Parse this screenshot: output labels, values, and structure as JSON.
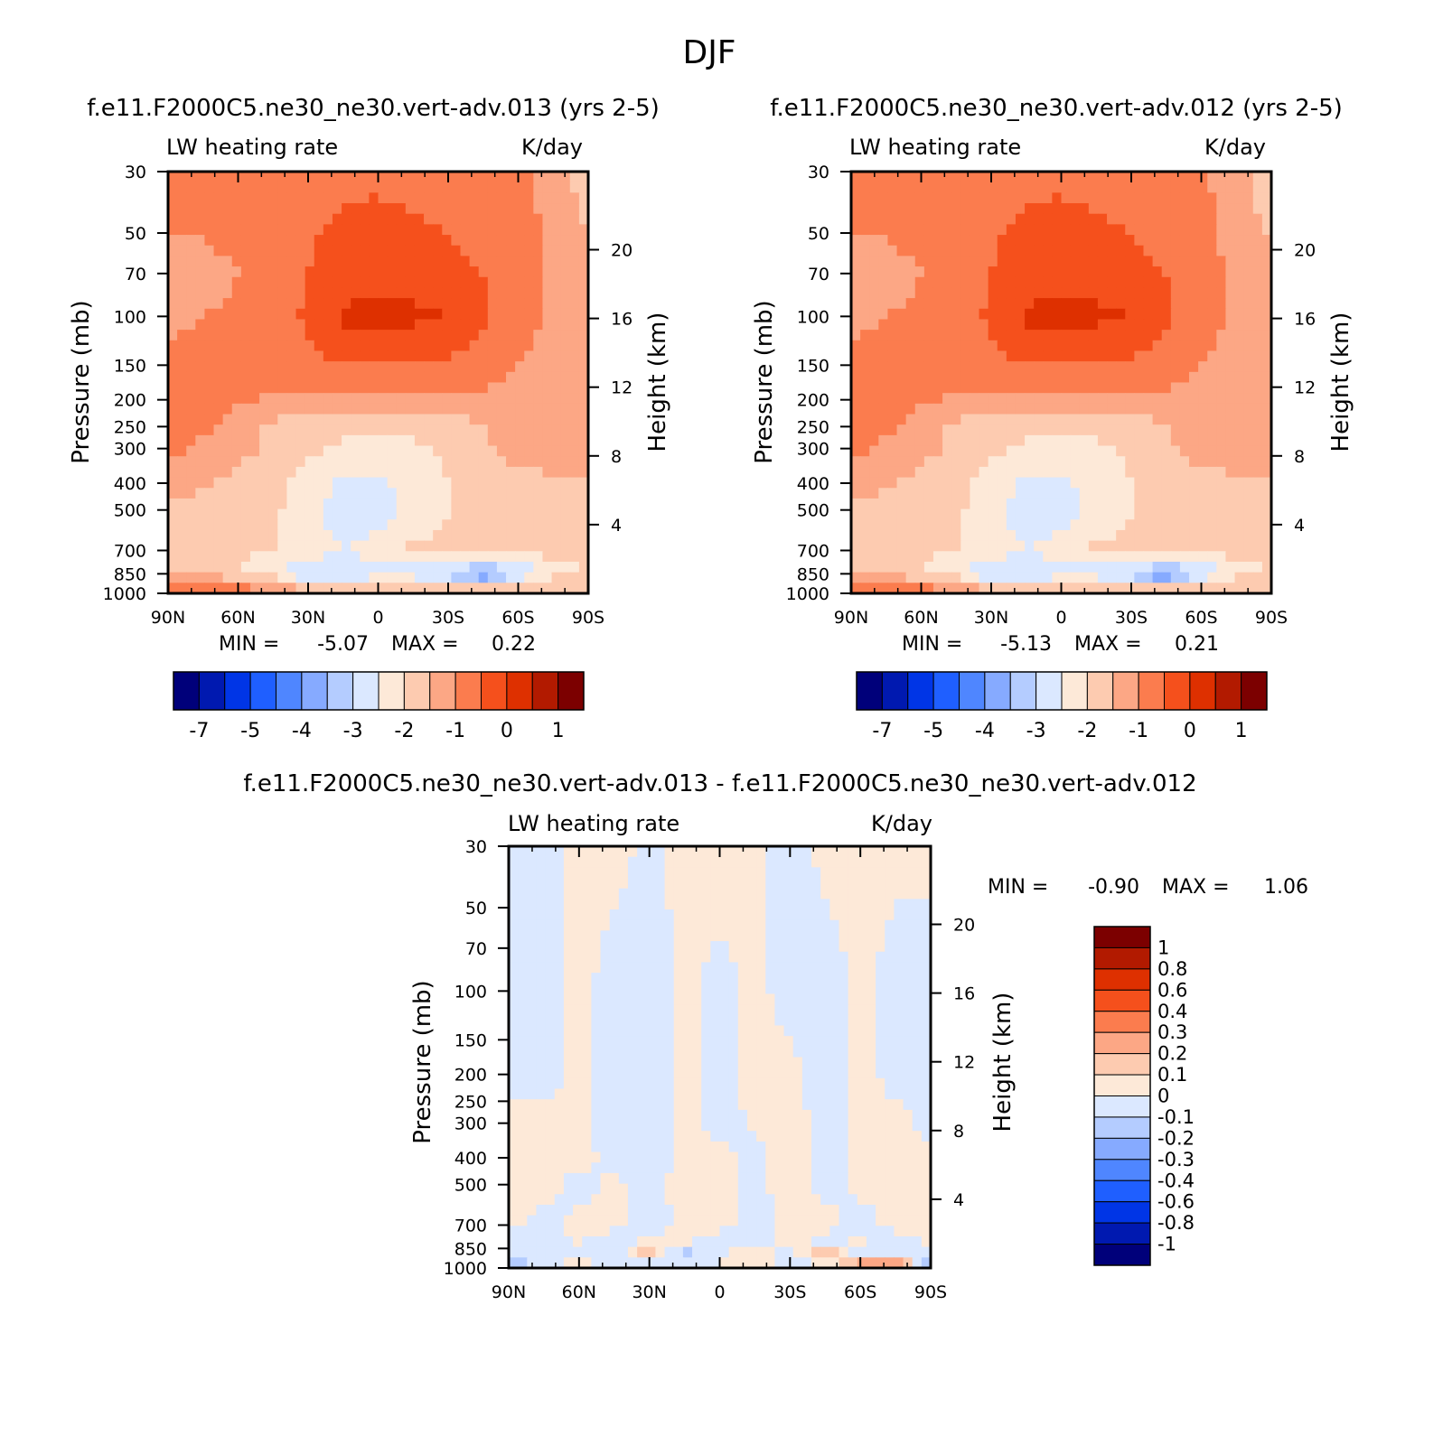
{
  "figure": {
    "title": "DJF"
  },
  "colors": {
    "frame": "#000000",
    "left_scale": [
      "#00007a",
      "#0019b0",
      "#0035e6",
      "#1f5fff",
      "#4f86ff",
      "#86aaff",
      "#b4ccff",
      "#dbe8ff",
      "#fde9d8",
      "#fdcbb0",
      "#fca785",
      "#fb7c4e",
      "#f5501c",
      "#de3000",
      "#b21a00",
      "#7c0000"
    ],
    "diff_scale": [
      "#00007a",
      "#0019b0",
      "#0035e6",
      "#1f5fff",
      "#4f86ff",
      "#86aaff",
      "#b4ccff",
      "#dbe8ff",
      "#fde9d8",
      "#fdcbb0",
      "#fca785",
      "#fb7c4e",
      "#f5501c",
      "#de3000",
      "#b21a00",
      "#7c0000"
    ]
  },
  "chart_data": [
    {
      "type": "heatmap",
      "id": "panel_013",
      "title": "f.e11.F2000C5.ne30_ne30.vert-adv.013 (yrs 2-5)",
      "left_string": "LW heating rate",
      "right_string": "K/day",
      "ylabel": "Pressure (mb)",
      "y2label": "Height (km)",
      "x_ticklabels": [
        "90N",
        "60N",
        "30N",
        "0",
        "30S",
        "60S",
        "90S"
      ],
      "y_ticklabels": [
        "30",
        "50",
        "70",
        "100",
        "150",
        "200",
        "250",
        "300",
        "400",
        "500",
        "700",
        "850",
        "1000"
      ],
      "y2_ticklabels": [
        "20",
        "16",
        "12",
        "8",
        "4"
      ],
      "xlim": [
        90,
        -90
      ],
      "ylim": [
        1000,
        30
      ],
      "y_scale": "log",
      "min_label": "MIN =",
      "min_value": "-5.07",
      "max_label": "MAX =",
      "max_value": "0.22",
      "colorbar_labels": [
        "-7",
        "-5",
        "-4",
        "-3",
        "-2",
        "-1",
        "0",
        "1"
      ],
      "field": [
        {
          "p": 30,
          "v": [
            -0.6,
            -0.6,
            -0.6,
            -0.6,
            -0.6,
            -0.6,
            -0.6,
            -0.7,
            -0.7,
            -0.8,
            -0.8,
            -1.2,
            -1.8
          ]
        },
        {
          "p": 70,
          "v": [
            -1.2,
            -1.2,
            -1.0,
            -0.8,
            -0.5,
            -0.3,
            -0.2,
            -0.2,
            -0.4,
            -0.5,
            -0.8,
            -1.1,
            -1.3
          ]
        },
        {
          "p": 100,
          "v": [
            -1.1,
            -1.0,
            -0.9,
            -0.8,
            -0.4,
            0.1,
            0.2,
            0.1,
            0.0,
            -0.4,
            -0.8,
            -1.1,
            -1.2
          ]
        },
        {
          "p": 150,
          "v": [
            -0.9,
            -0.8,
            -0.7,
            -0.8,
            -0.6,
            -0.5,
            -0.5,
            -0.5,
            -0.6,
            -0.8,
            -1.0,
            -1.2,
            -1.3
          ]
        },
        {
          "p": 200,
          "v": [
            -0.6,
            -0.7,
            -0.9,
            -1.1,
            -1.2,
            -1.2,
            -1.2,
            -1.2,
            -1.2,
            -1.1,
            -1.1,
            -1.2,
            -1.2
          ]
        },
        {
          "p": 250,
          "v": [
            -0.6,
            -0.9,
            -1.3,
            -1.6,
            -1.8,
            -1.9,
            -1.9,
            -1.9,
            -1.8,
            -1.5,
            -1.2,
            -1.2,
            -1.2
          ]
        },
        {
          "p": 300,
          "v": [
            -0.9,
            -1.1,
            -1.3,
            -1.6,
            -1.9,
            -2.1,
            -2.1,
            -2.1,
            -1.9,
            -1.6,
            -1.3,
            -1.2,
            -1.2
          ]
        },
        {
          "p": 400,
          "v": [
            -1.2,
            -1.4,
            -1.7,
            -1.9,
            -2.2,
            -2.6,
            -2.6,
            -2.3,
            -2.0,
            -1.8,
            -1.7,
            -1.6,
            -1.5
          ]
        },
        {
          "p": 500,
          "v": [
            -1.6,
            -1.8,
            -1.9,
            -1.9,
            -2.3,
            -2.8,
            -2.7,
            -2.3,
            -2.0,
            -1.9,
            -1.9,
            -1.8,
            -1.6
          ]
        },
        {
          "p": 700,
          "v": [
            -1.7,
            -1.9,
            -1.9,
            -2.0,
            -2.3,
            -2.5,
            -2.3,
            -1.9,
            -1.9,
            -1.9,
            -1.9,
            -1.8,
            -1.6
          ]
        },
        {
          "p": 800,
          "v": [
            -1.7,
            -1.8,
            -2.0,
            -2.4,
            -2.6,
            -2.7,
            -2.6,
            -2.5,
            -2.8,
            -3.0,
            -2.8,
            -2.2,
            -1.9
          ]
        },
        {
          "p": 850,
          "v": [
            -1.4,
            -1.5,
            -1.8,
            -2.3,
            -3.2,
            -2.8,
            -2.4,
            -2.6,
            -3.3,
            -4.8,
            -3.1,
            -2.2,
            -1.7
          ]
        },
        {
          "p": 900,
          "v": [
            -1.1,
            -1.2,
            -1.4,
            -1.7,
            -2.3,
            -2.6,
            -2.5,
            -2.4,
            -2.6,
            -2.7,
            -2.3,
            -1.8,
            -1.5
          ]
        },
        {
          "p": 1000,
          "v": [
            -0.8,
            -0.7,
            -0.6,
            -0.8,
            -1.3,
            -1.5,
            -1.6,
            -1.5,
            -1.5,
            -1.4,
            -1.3,
            -1.4,
            -1.6
          ]
        }
      ]
    },
    {
      "type": "heatmap",
      "id": "panel_012",
      "title": "f.e11.F2000C5.ne30_ne30.vert-adv.012 (yrs 2-5)",
      "left_string": "LW heating rate",
      "right_string": "K/day",
      "ylabel": "Pressure (mb)",
      "y2label": "Height (km)",
      "x_ticklabels": [
        "90N",
        "60N",
        "30N",
        "0",
        "30S",
        "60S",
        "90S"
      ],
      "y_ticklabels": [
        "30",
        "50",
        "70",
        "100",
        "150",
        "200",
        "250",
        "300",
        "400",
        "500",
        "700",
        "850",
        "1000"
      ],
      "y2_ticklabels": [
        "20",
        "16",
        "12",
        "8",
        "4"
      ],
      "xlim": [
        90,
        -90
      ],
      "ylim": [
        1000,
        30
      ],
      "y_scale": "log",
      "min_label": "MIN =",
      "min_value": "-5.13",
      "max_label": "MAX =",
      "max_value": "0.21",
      "colorbar_labels": [
        "-7",
        "-5",
        "-4",
        "-3",
        "-2",
        "-1",
        "0",
        "1"
      ],
      "field": [
        {
          "p": 30,
          "v": [
            -0.6,
            -0.6,
            -0.6,
            -0.6,
            -0.6,
            -0.6,
            -0.6,
            -0.7,
            -0.7,
            -0.8,
            -0.9,
            -1.3,
            -1.9
          ]
        },
        {
          "p": 70,
          "v": [
            -1.2,
            -1.2,
            -1.0,
            -0.8,
            -0.5,
            -0.3,
            -0.2,
            -0.2,
            -0.4,
            -0.5,
            -0.8,
            -1.1,
            -1.3
          ]
        },
        {
          "p": 100,
          "v": [
            -1.1,
            -1.0,
            -0.9,
            -0.8,
            -0.4,
            0.1,
            0.2,
            0.1,
            0.0,
            -0.4,
            -0.8,
            -1.1,
            -1.2
          ]
        },
        {
          "p": 150,
          "v": [
            -0.9,
            -0.8,
            -0.7,
            -0.8,
            -0.6,
            -0.5,
            -0.5,
            -0.5,
            -0.6,
            -0.8,
            -1.0,
            -1.2,
            -1.3
          ]
        },
        {
          "p": 200,
          "v": [
            -0.6,
            -0.7,
            -0.9,
            -1.1,
            -1.2,
            -1.2,
            -1.2,
            -1.2,
            -1.2,
            -1.1,
            -1.1,
            -1.2,
            -1.2
          ]
        },
        {
          "p": 250,
          "v": [
            -0.6,
            -0.9,
            -1.3,
            -1.6,
            -1.8,
            -1.9,
            -1.9,
            -1.9,
            -1.8,
            -1.5,
            -1.2,
            -1.2,
            -1.2
          ]
        },
        {
          "p": 300,
          "v": [
            -0.9,
            -1.1,
            -1.3,
            -1.6,
            -1.9,
            -2.1,
            -2.1,
            -2.1,
            -1.9,
            -1.6,
            -1.3,
            -1.2,
            -1.2
          ]
        },
        {
          "p": 400,
          "v": [
            -1.2,
            -1.4,
            -1.7,
            -1.9,
            -2.2,
            -2.6,
            -2.6,
            -2.3,
            -2.0,
            -1.8,
            -1.7,
            -1.6,
            -1.5
          ]
        },
        {
          "p": 500,
          "v": [
            -1.6,
            -1.8,
            -1.9,
            -1.9,
            -2.3,
            -2.8,
            -2.7,
            -2.3,
            -2.0,
            -1.9,
            -1.9,
            -1.8,
            -1.6
          ]
        },
        {
          "p": 700,
          "v": [
            -1.7,
            -1.9,
            -1.9,
            -2.0,
            -2.3,
            -2.5,
            -2.3,
            -1.9,
            -1.9,
            -1.9,
            -1.9,
            -1.8,
            -1.6
          ]
        },
        {
          "p": 800,
          "v": [
            -1.7,
            -1.8,
            -2.0,
            -2.4,
            -2.6,
            -2.7,
            -2.6,
            -2.5,
            -2.8,
            -3.0,
            -2.8,
            -2.2,
            -1.9
          ]
        },
        {
          "p": 850,
          "v": [
            -1.4,
            -1.5,
            -1.8,
            -2.3,
            -3.1,
            -2.7,
            -2.4,
            -2.6,
            -3.3,
            -4.9,
            -3.1,
            -2.2,
            -1.7
          ]
        },
        {
          "p": 900,
          "v": [
            -1.1,
            -1.2,
            -1.4,
            -1.7,
            -2.3,
            -2.6,
            -2.5,
            -2.4,
            -2.6,
            -2.7,
            -2.3,
            -1.8,
            -1.5
          ]
        },
        {
          "p": 1000,
          "v": [
            -0.8,
            -0.6,
            -0.6,
            -0.8,
            -1.3,
            -1.5,
            -1.6,
            -1.5,
            -1.5,
            -1.4,
            -1.3,
            -1.4,
            -1.6
          ]
        }
      ]
    },
    {
      "type": "heatmap",
      "id": "panel_diff",
      "title": "f.e11.F2000C5.ne30_ne30.vert-adv.013 - f.e11.F2000C5.ne30_ne30.vert-adv.012",
      "left_string": "LW heating rate",
      "right_string": "K/day",
      "ylabel": "Pressure (mb)",
      "y2label": "Height (km)",
      "x_ticklabels": [
        "90N",
        "60N",
        "30N",
        "0",
        "30S",
        "60S",
        "90S"
      ],
      "y_ticklabels": [
        "30",
        "50",
        "70",
        "100",
        "150",
        "200",
        "250",
        "300",
        "400",
        "500",
        "700",
        "850",
        "1000"
      ],
      "y2_ticklabels": [
        "20",
        "16",
        "12",
        "8",
        "4"
      ],
      "xlim": [
        90,
        -90
      ],
      "ylim": [
        1000,
        30
      ],
      "y_scale": "log",
      "min_label": "MIN =",
      "min_value": "-0.90",
      "max_label": "MAX =",
      "max_value": "1.06",
      "colorbar_labels": [
        "1",
        "0.8",
        "0.6",
        "0.4",
        "0.3",
        "0.2",
        "0.1",
        "0",
        "-0.1",
        "-0.2",
        "-0.3",
        "-0.4",
        "-0.6",
        "-0.8",
        "-1"
      ],
      "field": [
        {
          "p": 30,
          "v": [
            -0.05,
            -0.04,
            0.02,
            0.03,
            -0.02,
            0.03,
            0.04,
            0.02,
            -0.03,
            0.02,
            0.03,
            0.02,
            0.02
          ]
        },
        {
          "p": 100,
          "v": [
            -0.04,
            -0.05,
            0.03,
            -0.04,
            -0.05,
            0.02,
            -0.03,
            0.03,
            -0.04,
            -0.04,
            0.02,
            -0.03,
            -0.04
          ]
        },
        {
          "p": 200,
          "v": [
            -0.03,
            -0.04,
            0.02,
            -0.05,
            -0.06,
            0.03,
            -0.03,
            0.02,
            0.03,
            -0.04,
            0.03,
            -0.03,
            -0.04
          ]
        },
        {
          "p": 300,
          "v": [
            0.02,
            0.03,
            0.02,
            -0.04,
            -0.05,
            0.03,
            -0.04,
            0.02,
            0.03,
            -0.03,
            0.02,
            0.03,
            -0.03
          ]
        },
        {
          "p": 400,
          "v": [
            0.03,
            0.02,
            0.03,
            -0.03,
            -0.04,
            0.02,
            0.03,
            -0.03,
            0.04,
            -0.03,
            0.02,
            0.03,
            0.02
          ]
        },
        {
          "p": 500,
          "v": [
            0.02,
            0.03,
            -0.03,
            0.02,
            -0.03,
            0.03,
            0.02,
            -0.02,
            0.03,
            -0.03,
            0.02,
            0.03,
            0.02
          ]
        },
        {
          "p": 700,
          "v": [
            0.03,
            -0.04,
            0.02,
            0.03,
            -0.04,
            0.02,
            0.03,
            -0.04,
            0.02,
            0.03,
            -0.03,
            0.02,
            0.03
          ]
        },
        {
          "p": 800,
          "v": [
            -0.04,
            -0.05,
            0.02,
            -0.06,
            0.03,
            0.02,
            -0.04,
            -0.05,
            0.03,
            -0.04,
            0.02,
            -0.03,
            0.02
          ]
        },
        {
          "p": 850,
          "v": [
            -0.06,
            -0.12,
            -0.08,
            -0.09,
            0.25,
            -0.18,
            -0.05,
            0.04,
            -0.06,
            0.3,
            -0.07,
            -0.08,
            0.03
          ]
        },
        {
          "p": 900,
          "v": [
            -0.05,
            -0.06,
            -0.04,
            -0.05,
            0.06,
            -0.07,
            -0.04,
            0.12,
            -0.03,
            0.05,
            -0.05,
            -0.06,
            -0.08
          ]
        },
        {
          "p": 1000,
          "v": [
            -0.22,
            -0.07,
            0.1,
            -0.06,
            -0.04,
            -0.05,
            0.03,
            -0.04,
            -0.03,
            0.02,
            0.45,
            0.5,
            -0.3
          ]
        }
      ]
    }
  ],
  "colorbars": {
    "left": {
      "labels": [
        "-7",
        "-5",
        "-4",
        "-3",
        "-2",
        "-1",
        "0",
        "1"
      ]
    },
    "right": {
      "labels": [
        "-7",
        "-5",
        "-4",
        "-3",
        "-2",
        "-1",
        "0",
        "1"
      ]
    },
    "diff": {
      "labels": [
        "1",
        "0.8",
        "0.6",
        "0.4",
        "0.3",
        "0.2",
        "0.1",
        "0",
        "-0.1",
        "-0.2",
        "-0.3",
        "-0.4",
        "-0.6",
        "-0.8",
        "-1"
      ]
    }
  }
}
